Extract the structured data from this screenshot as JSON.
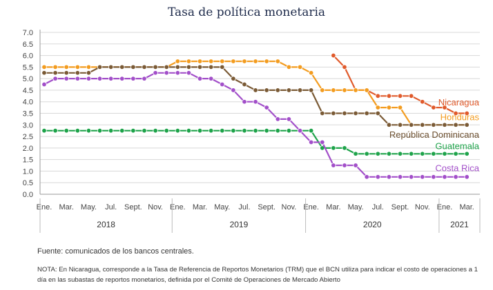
{
  "chart_data": {
    "type": "line",
    "title": "Tasa de política monetaria",
    "xlabel": "",
    "ylabel": "",
    "ylim": [
      0.0,
      7.0
    ],
    "yticks": [
      "7.0",
      "6.5",
      "6.0",
      "5.5",
      "5.0",
      "4.5",
      "4.0",
      "3.5",
      "3.0",
      "2.5",
      "2.0",
      "1.5",
      "1.0",
      "0.5",
      "0.0"
    ],
    "month_tick_labels": [
      "Ene.",
      "Mar.",
      "May.",
      "Jul.",
      "Sept.",
      "Nov.",
      "Ene.",
      "Mar.",
      "May.",
      "Jul.",
      "Sept.",
      "Nov.",
      "Ene.",
      "Mar.",
      "May.",
      "Jul.",
      "Sept.",
      "Nov.",
      "Ene.",
      "Mar."
    ],
    "year_labels": [
      "2018",
      "2019",
      "2020",
      "2021"
    ],
    "x_start": "2018-01",
    "x_end": "2021-04",
    "grid": true,
    "legend": "inline labels at right",
    "series": [
      {
        "name": "Nicaragua",
        "color": "#e05a2b",
        "values": [
          null,
          null,
          null,
          null,
          null,
          null,
          null,
          null,
          null,
          null,
          null,
          null,
          null,
          null,
          null,
          null,
          null,
          null,
          null,
          null,
          null,
          null,
          null,
          null,
          null,
          null,
          6.0,
          5.5,
          4.5,
          4.5,
          4.25,
          4.25,
          4.25,
          4.25,
          4.0,
          3.75,
          3.75,
          3.5,
          3.5
        ]
      },
      {
        "name": "Honduras",
        "color": "#f39c1f",
        "values": [
          5.5,
          5.5,
          5.5,
          5.5,
          5.5,
          5.5,
          5.5,
          5.5,
          5.5,
          5.5,
          5.5,
          5.5,
          5.75,
          5.75,
          5.75,
          5.75,
          5.75,
          5.75,
          5.75,
          5.75,
          5.75,
          5.75,
          5.5,
          5.5,
          5.25,
          4.5,
          4.5,
          4.5,
          4.5,
          4.5,
          3.75,
          3.75,
          3.75,
          3.0,
          3.0,
          3.0,
          3.0,
          3.0,
          3.0
        ]
      },
      {
        "name": "República Dominicana",
        "color": "#7a5a35",
        "values": [
          5.25,
          5.25,
          5.25,
          5.25,
          5.25,
          5.5,
          5.5,
          5.5,
          5.5,
          5.5,
          5.5,
          5.5,
          5.5,
          5.5,
          5.5,
          5.5,
          5.5,
          5.0,
          4.75,
          4.5,
          4.5,
          4.5,
          4.5,
          4.5,
          4.5,
          3.5,
          3.5,
          3.5,
          3.5,
          3.5,
          3.5,
          3.0,
          3.0,
          3.0,
          3.0,
          3.0,
          3.0,
          3.0,
          3.0
        ]
      },
      {
        "name": "Guatemala",
        "color": "#1ea34a",
        "values": [
          2.75,
          2.75,
          2.75,
          2.75,
          2.75,
          2.75,
          2.75,
          2.75,
          2.75,
          2.75,
          2.75,
          2.75,
          2.75,
          2.75,
          2.75,
          2.75,
          2.75,
          2.75,
          2.75,
          2.75,
          2.75,
          2.75,
          2.75,
          2.75,
          2.75,
          2.0,
          2.0,
          2.0,
          1.75,
          1.75,
          1.75,
          1.75,
          1.75,
          1.75,
          1.75,
          1.75,
          1.75,
          1.75,
          1.75
        ]
      },
      {
        "name": "Costa Rica",
        "color": "#a24fc9",
        "values": [
          4.75,
          5.0,
          5.0,
          5.0,
          5.0,
          5.0,
          5.0,
          5.0,
          5.0,
          5.0,
          5.25,
          5.25,
          5.25,
          5.25,
          5.0,
          5.0,
          4.75,
          4.5,
          4.0,
          4.0,
          3.75,
          3.25,
          3.25,
          2.75,
          2.25,
          2.25,
          1.25,
          1.25,
          1.25,
          0.75,
          0.75,
          0.75,
          0.75,
          0.75,
          0.75,
          0.75,
          0.75,
          0.75,
          0.75
        ]
      }
    ]
  },
  "footer": {
    "source": "Fuente: comunicados de los bancos centrales.",
    "note": "NOTA: En Nicaragua, corresponde a la Tasa de Referencia de Reportos Monetarios (TRM) que el BCN utiliza para indicar el costo de operaciones a 1 día en las subastas de reportos monetarios, definida por el Comité de Operaciones de Mercado Abierto"
  }
}
